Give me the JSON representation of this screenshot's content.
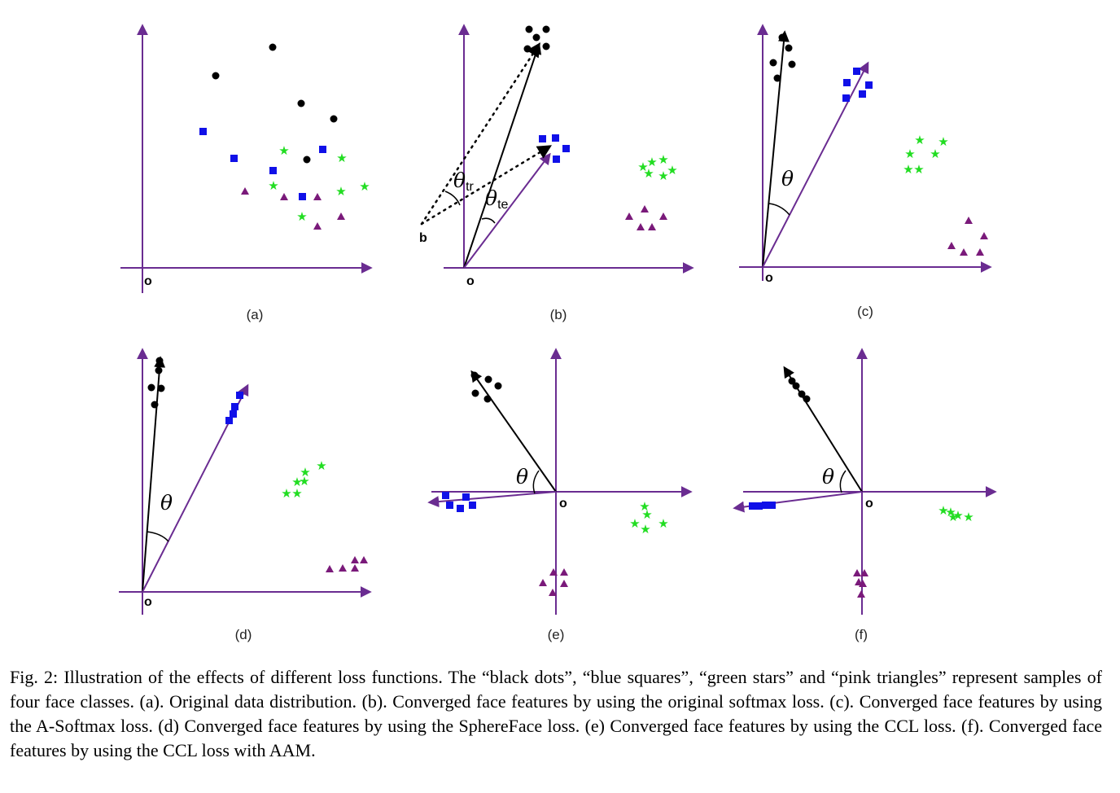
{
  "panels": [
    {
      "id": "a",
      "label": "(a)",
      "origin_label": "o"
    },
    {
      "id": "b",
      "label": "(b)",
      "origin_label": "o",
      "theta_train": "θ",
      "theta_train_sub": "tr",
      "theta_test": "θ",
      "theta_test_sub": "te",
      "point_label": "b"
    },
    {
      "id": "c",
      "label": "(c)",
      "origin_label": "o",
      "theta": "θ"
    },
    {
      "id": "d",
      "label": "(d)",
      "origin_label": "o",
      "theta": "θ"
    },
    {
      "id": "e",
      "label": "(e)",
      "origin_label": "o",
      "theta": "θ"
    },
    {
      "id": "f",
      "label": "(f)",
      "origin_label": "o",
      "theta": "θ"
    }
  ],
  "legend_classes": [
    "black dots",
    "blue squares",
    "green stars",
    "pink triangles"
  ],
  "colors": {
    "axis": "#6a2c91",
    "dot": "#000000",
    "square": "#1010e8",
    "star": "#22dd22",
    "triangle": "#7a1a7a",
    "arrow": "#000000"
  },
  "caption": "Fig. 2: Illustration of the effects of different loss functions. The “black dots”, “blue squares”, “green stars” and “pink triangles” represent samples of four face classes. (a). Original data distribution. (b). Converged face features by using the original softmax loss. (c). Converged face features by using the A-Softmax loss. (d) Converged face features by using the SphereFace loss. (e) Converged face features by using the CCL loss. (f). Converged face features by using the CCL loss with AAM."
}
